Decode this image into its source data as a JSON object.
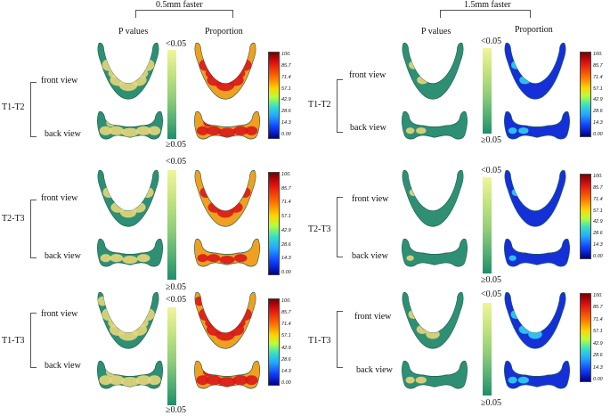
{
  "panels": [
    {
      "title": "0.5mm faster",
      "col_p": "P values",
      "col_prop": "Proportion",
      "rows": [
        {
          "label": "T1-T2",
          "front": "front view",
          "back": "back view",
          "p_top": "<0.05",
          "p_bottom": "≥0.05"
        },
        {
          "label": "T2-T3",
          "front": "front view",
          "back": "back view",
          "p_top": "<0.05",
          "p_bottom": "≥0.05"
        },
        {
          "label": "T1-T3",
          "front": "front view",
          "back": "back view",
          "p_top": "<0.05",
          "p_bottom": "≥0.05"
        }
      ]
    },
    {
      "title": "1.5mm faster",
      "col_p": "P values",
      "col_prop": "Proportion",
      "rows": [
        {
          "label": "T1-T2",
          "front": "front view",
          "back": "back view",
          "p_top": "<0.05",
          "p_bottom": "≥0.05"
        },
        {
          "label": "T2-T3",
          "front": "front view",
          "back": "back view",
          "p_top": "<0.05",
          "p_bottom": "≥0.05"
        },
        {
          "label": "T1-T3",
          "front": "front view",
          "back": "back view",
          "p_top": "<0.05",
          "p_bottom": "≥0.05"
        }
      ]
    }
  ],
  "scale_ticks": [
    "100.",
    "85.7",
    "71.4",
    "57.1",
    "42.9",
    "28.6",
    "14.3",
    "0.00"
  ],
  "colors": {
    "mesh_green": "#2f8f75",
    "significant_yellow": "#e6d67a",
    "jet_red": "#d81818",
    "jet_blue": "#1630d8"
  }
}
